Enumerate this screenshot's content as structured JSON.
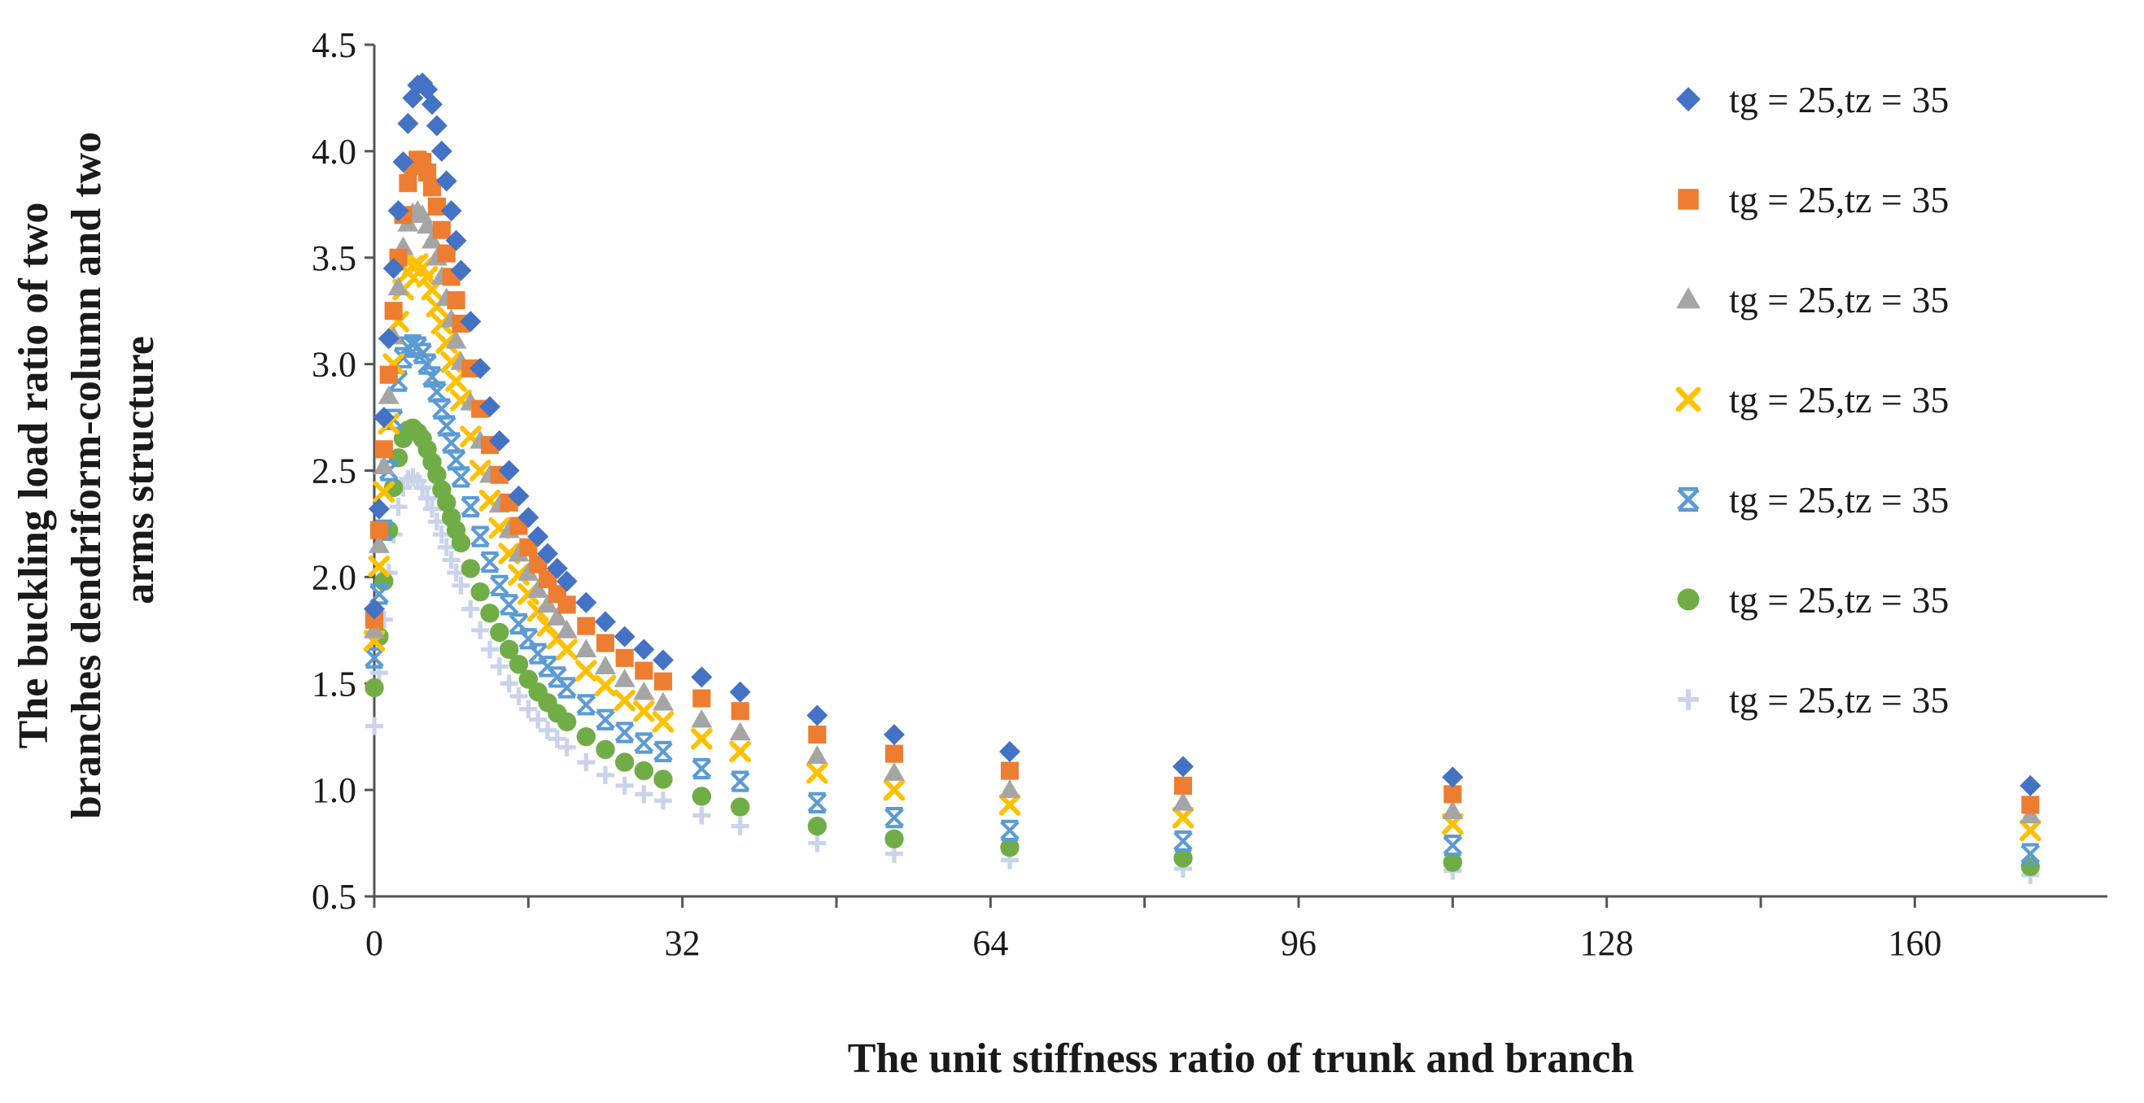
{
  "chart_data": {
    "type": "scatter",
    "title": "",
    "xlabel": "The unit stiffness ratio of trunk and branch",
    "ylabel_lines": [
      "The buckling load ratio of two",
      "branches dendriform-column and two",
      "arms structure"
    ],
    "xlim": [
      0,
      180
    ],
    "ylim": [
      0.5,
      4.5
    ],
    "xticks": [
      0,
      32,
      64,
      96,
      128,
      160
    ],
    "xtick_labels": [
      "0",
      "32",
      "64",
      "96",
      "128",
      "160"
    ],
    "x_minor_ticks": [
      16,
      48,
      80,
      112,
      144
    ],
    "yticks": [
      0.5,
      1.0,
      1.5,
      2.0,
      2.5,
      3.0,
      3.5,
      4.0,
      4.5
    ],
    "ytick_labels": [
      "0.5",
      "1.0",
      "1.5",
      "2.0",
      "2.5",
      "3.0",
      "3.5",
      "4.0",
      "4.5"
    ],
    "grid": false,
    "legend_position": "right",
    "x": [
      0,
      0.5,
      1,
      1.5,
      2,
      2.5,
      3,
      3.5,
      4,
      4.5,
      5,
      5.5,
      6,
      6.5,
      7,
      7.5,
      8,
      8.5,
      9,
      10,
      11,
      12,
      13,
      14,
      15,
      16,
      17,
      18,
      19,
      20,
      22,
      24,
      26,
      28,
      30,
      34,
      38,
      46,
      54,
      66,
      84,
      112,
      172
    ],
    "series": [
      {
        "name": "tg = 25,tz = 35",
        "marker": "diamond",
        "color": "#4472C4",
        "values": [
          1.85,
          2.32,
          2.75,
          3.12,
          3.45,
          3.72,
          3.95,
          4.13,
          4.25,
          4.31,
          4.32,
          4.29,
          4.22,
          4.12,
          4.0,
          3.86,
          3.72,
          3.58,
          3.44,
          3.2,
          2.98,
          2.8,
          2.64,
          2.5,
          2.38,
          2.28,
          2.19,
          2.11,
          2.04,
          1.98,
          1.88,
          1.79,
          1.72,
          1.66,
          1.61,
          1.53,
          1.46,
          1.35,
          1.26,
          1.18,
          1.11,
          1.06,
          1.02
        ]
      },
      {
        "name": "tg = 25,tz = 35",
        "marker": "square",
        "color": "#ED7D31",
        "values": [
          1.8,
          2.22,
          2.6,
          2.95,
          3.25,
          3.5,
          3.7,
          3.85,
          3.93,
          3.96,
          3.95,
          3.9,
          3.83,
          3.74,
          3.63,
          3.52,
          3.41,
          3.3,
          3.19,
          2.98,
          2.79,
          2.62,
          2.48,
          2.35,
          2.24,
          2.14,
          2.06,
          1.99,
          1.92,
          1.87,
          1.77,
          1.69,
          1.62,
          1.56,
          1.51,
          1.43,
          1.37,
          1.26,
          1.17,
          1.09,
          1.02,
          0.98,
          0.93
        ]
      },
      {
        "name": "tg = 25,tz = 35",
        "marker": "triangle",
        "color": "#A5A5A5",
        "values": [
          1.75,
          2.15,
          2.52,
          2.85,
          3.13,
          3.36,
          3.55,
          3.66,
          3.71,
          3.72,
          3.7,
          3.65,
          3.58,
          3.5,
          3.41,
          3.31,
          3.21,
          3.11,
          3.01,
          2.82,
          2.64,
          2.48,
          2.34,
          2.22,
          2.11,
          2.02,
          1.94,
          1.87,
          1.81,
          1.75,
          1.66,
          1.58,
          1.52,
          1.46,
          1.41,
          1.33,
          1.27,
          1.16,
          1.08,
          1.0,
          0.94,
          0.9,
          0.88
        ]
      },
      {
        "name": "tg = 25,tz = 35",
        "marker": "x",
        "color": "#FFC000",
        "values": [
          1.7,
          2.05,
          2.4,
          2.72,
          3.0,
          3.2,
          3.35,
          3.43,
          3.46,
          3.47,
          3.45,
          3.41,
          3.35,
          3.27,
          3.19,
          3.1,
          3.01,
          2.92,
          2.83,
          2.66,
          2.5,
          2.36,
          2.23,
          2.11,
          2.01,
          1.92,
          1.84,
          1.77,
          1.71,
          1.66,
          1.56,
          1.49,
          1.42,
          1.37,
          1.32,
          1.24,
          1.18,
          1.08,
          1.0,
          0.93,
          0.87,
          0.84,
          0.81
        ]
      },
      {
        "name": "tg = 25,tz = 35",
        "marker": "asterisk",
        "color": "#5B9BD5",
        "values": [
          1.62,
          1.92,
          2.22,
          2.5,
          2.74,
          2.92,
          3.03,
          3.08,
          3.09,
          3.08,
          3.05,
          3.0,
          2.94,
          2.87,
          2.79,
          2.71,
          2.63,
          2.55,
          2.47,
          2.33,
          2.19,
          2.07,
          1.96,
          1.87,
          1.78,
          1.71,
          1.64,
          1.58,
          1.53,
          1.48,
          1.4,
          1.33,
          1.27,
          1.22,
          1.18,
          1.1,
          1.04,
          0.94,
          0.87,
          0.81,
          0.76,
          0.74,
          0.7
        ]
      },
      {
        "name": "tg = 25,tz = 35",
        "marker": "circle",
        "color": "#70AD47",
        "values": [
          1.48,
          1.72,
          1.98,
          2.22,
          2.42,
          2.56,
          2.65,
          2.69,
          2.7,
          2.68,
          2.65,
          2.6,
          2.54,
          2.48,
          2.41,
          2.35,
          2.28,
          2.22,
          2.16,
          2.04,
          1.93,
          1.83,
          1.74,
          1.66,
          1.59,
          1.52,
          1.46,
          1.41,
          1.36,
          1.32,
          1.25,
          1.19,
          1.13,
          1.09,
          1.05,
          0.97,
          0.92,
          0.83,
          0.77,
          0.73,
          0.68,
          0.66,
          0.64
        ]
      },
      {
        "name": "tg = 25,tz = 35",
        "marker": "plus",
        "color": "#C9D3EC",
        "values": [
          1.3,
          1.55,
          1.8,
          2.02,
          2.2,
          2.33,
          2.42,
          2.46,
          2.47,
          2.45,
          2.42,
          2.37,
          2.32,
          2.26,
          2.2,
          2.14,
          2.08,
          2.02,
          1.96,
          1.85,
          1.75,
          1.66,
          1.58,
          1.5,
          1.44,
          1.38,
          1.33,
          1.28,
          1.24,
          1.2,
          1.13,
          1.07,
          1.02,
          0.98,
          0.95,
          0.88,
          0.83,
          0.75,
          0.7,
          0.67,
          0.63,
          0.62,
          0.6
        ]
      }
    ]
  }
}
